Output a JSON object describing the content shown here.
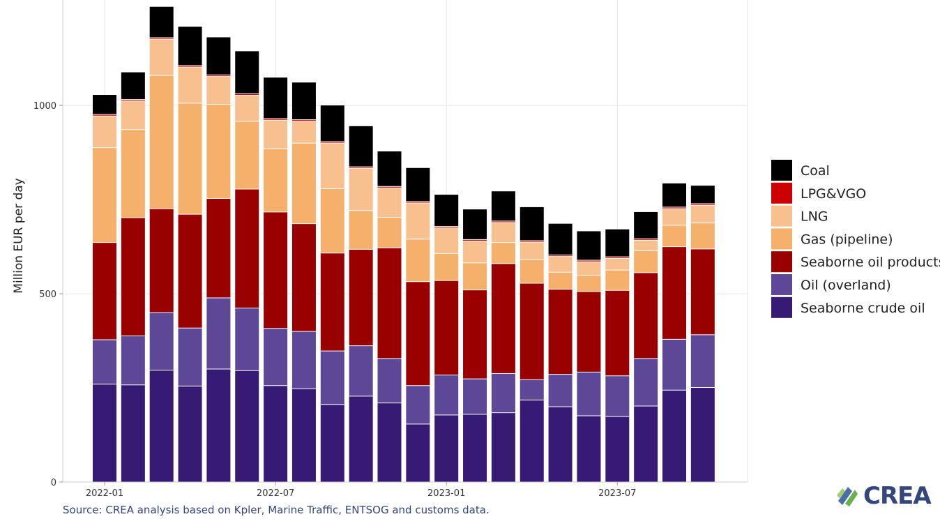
{
  "chart_data": {
    "type": "bar",
    "stacked": true,
    "ylabel": "Million EUR per day",
    "ylim": [
      0,
      1280
    ],
    "yticks": [
      0,
      500,
      1000
    ],
    "grid": true,
    "legend_position": "right",
    "x_tick_labels": [
      {
        "index": 0,
        "label": "2022-01"
      },
      {
        "index": 6,
        "label": "2022-07"
      },
      {
        "index": 12,
        "label": "2023-01"
      },
      {
        "index": 18,
        "label": "2023-07"
      }
    ],
    "categories": [
      "2022-01",
      "2022-02",
      "2022-03",
      "2022-04",
      "2022-05",
      "2022-06",
      "2022-07",
      "2022-08",
      "2022-09",
      "2022-10",
      "2022-11",
      "2022-12",
      "2023-01",
      "2023-02",
      "2023-03",
      "2023-04",
      "2023-05",
      "2023-06",
      "2023-07",
      "2023-08",
      "2023-09",
      "2023-10"
    ],
    "series": [
      {
        "name": "Seaborne crude oil",
        "color": "#371a74",
        "values": [
          260,
          258,
          297,
          255,
          300,
          296,
          256,
          248,
          206,
          228,
          210,
          154,
          178,
          180,
          184,
          218,
          200,
          176,
          174,
          202,
          244,
          251
        ]
      },
      {
        "name": "Oil (overland)",
        "color": "#5c4896",
        "values": [
          118,
          130,
          153,
          154,
          189,
          166,
          152,
          152,
          142,
          134,
          118,
          102,
          106,
          94,
          104,
          54,
          86,
          116,
          108,
          126,
          135,
          140
        ]
      },
      {
        "name": "Seaborne oil products",
        "color": "#990000",
        "values": [
          258,
          314,
          276,
          302,
          264,
          316,
          309,
          286,
          260,
          256,
          294,
          276,
          251,
          236,
          292,
          256,
          226,
          214,
          227,
          228,
          246,
          228
        ]
      },
      {
        "name": "Gas (pipeline)",
        "color": "#f5b06c",
        "values": [
          252,
          234,
          354,
          295,
          250,
          180,
          168,
          214,
          171,
          103,
          81,
          113,
          72,
          72,
          56,
          63,
          45,
          43,
          54,
          58,
          57,
          69
        ]
      },
      {
        "name": "LNG",
        "color": "#f8c08e",
        "values": [
          84,
          76,
          96,
          96,
          74,
          69,
          76,
          58,
          121,
          112,
          78,
          96,
          68,
          58,
          53,
          46,
          42,
          36,
          31,
          28,
          44,
          47
        ]
      },
      {
        "name": "LPG&VGO",
        "color": "#cc0000",
        "values": [
          4,
          4,
          4,
          4,
          4,
          4,
          4,
          4,
          4,
          4,
          4,
          4,
          4,
          4,
          4,
          4,
          4,
          4,
          4,
          4,
          4,
          4
        ]
      },
      {
        "name": "Coal",
        "color": "#000000",
        "values": [
          52,
          72,
          82,
          103,
          100,
          113,
          109,
          99,
          96,
          108,
          93,
          89,
          84,
          80,
          79,
          89,
          83,
          77,
          73,
          71,
          63,
          48
        ]
      }
    ]
  },
  "legend_order": [
    "Coal",
    "LPG&VGO",
    "LNG",
    "Gas (pipeline)",
    "Seaborne oil products",
    "Oil (overland)",
    "Seaborne crude oil"
  ],
  "source": "Source: CREA analysis based on Kpler, Marine Traffic, ENTSOG and customs data.",
  "logo": {
    "text": "CREA"
  }
}
